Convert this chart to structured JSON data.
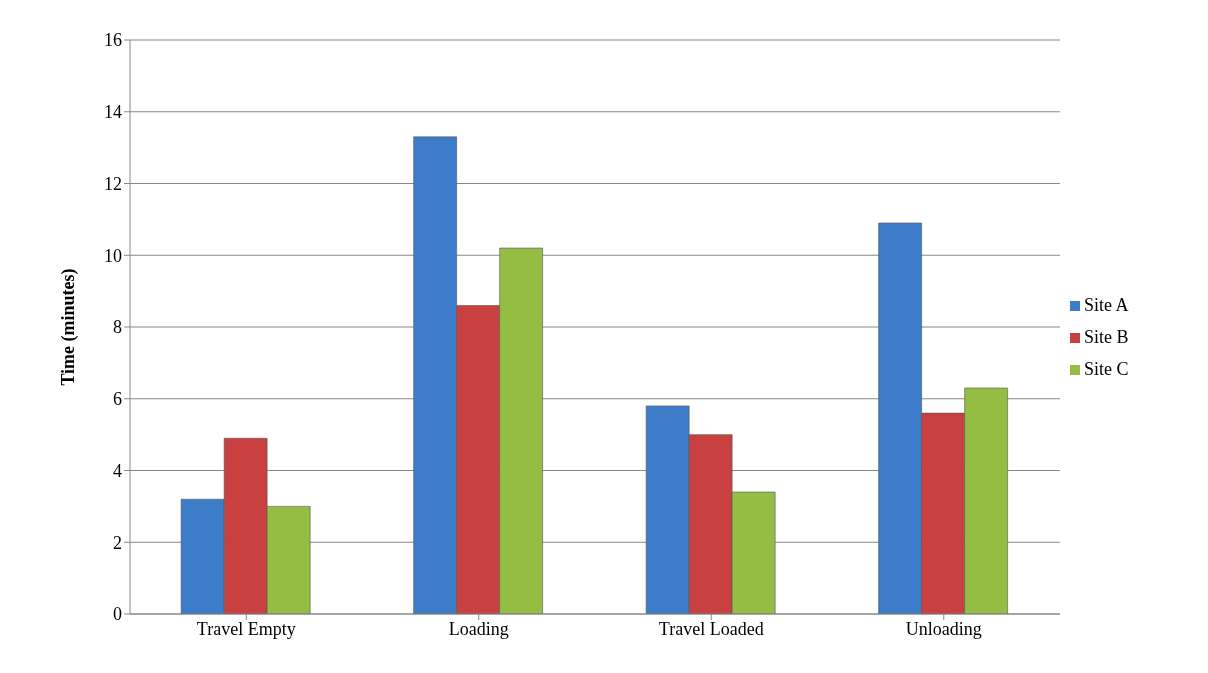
{
  "chart_data": {
    "type": "bar",
    "ylabel": "Time (minutes)",
    "categories": [
      "Travel Empty",
      "Loading",
      "Travel Loaded",
      "Unloading"
    ],
    "series": [
      {
        "name": "Site A",
        "color": "#3d7cc9",
        "values": [
          3.2,
          13.3,
          5.8,
          10.9
        ]
      },
      {
        "name": "Site B",
        "color": "#c94040",
        "values": [
          4.9,
          8.6,
          5.0,
          5.6
        ]
      },
      {
        "name": "Site C",
        "color": "#94bd44",
        "values": [
          3.0,
          10.2,
          3.4,
          6.3
        ]
      }
    ],
    "ylim": [
      0,
      16
    ],
    "yticks": [
      0,
      2,
      4,
      6,
      8,
      10,
      12,
      14,
      16
    ],
    "grid": "y",
    "legend": "right"
  }
}
